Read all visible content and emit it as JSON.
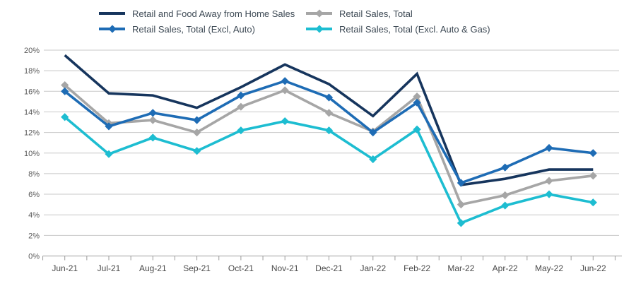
{
  "chart_style": {
    "background_color": "#ffffff",
    "grid_color": "#c8c8c8",
    "axis_color": "#9b9b9b",
    "y_label_color": "#595959",
    "x_label_color": "#4a4a4a",
    "legend_text_color": "#3e4a55"
  },
  "chart_data": {
    "type": "line",
    "title": "",
    "xlabel": "",
    "ylabel": "",
    "grid": "horizontal",
    "legend_position": "top",
    "ylim": [
      0,
      20
    ],
    "ytick_step": 2,
    "yticks": [
      "0%",
      "2%",
      "4%",
      "6%",
      "8%",
      "10%",
      "12%",
      "14%",
      "16%",
      "18%",
      "20%"
    ],
    "categories": [
      "Jun-21",
      "Jul-21",
      "Aug-21",
      "Sep-21",
      "Oct-21",
      "Nov-21",
      "Dec-21",
      "Jan-22",
      "Feb-22",
      "Mar-22",
      "Apr-22",
      "May-22",
      "Jun-22"
    ],
    "series": [
      {
        "name": "Retail and Food Away from Home Sales",
        "color": "#16355d",
        "marker": "none",
        "values": [
          19.5,
          15.8,
          15.6,
          14.4,
          16.4,
          18.6,
          16.7,
          13.6,
          17.7,
          6.9,
          7.5,
          8.4,
          8.4
        ]
      },
      {
        "name": "Retail Sales, Total (Excl, Auto)",
        "color": "#1e6cb5",
        "marker": "diamond",
        "values": [
          16.0,
          12.6,
          13.9,
          13.2,
          15.6,
          17.0,
          15.4,
          12.0,
          14.9,
          7.1,
          8.6,
          10.5,
          10.0
        ]
      },
      {
        "name": "Retail Sales, Total",
        "color": "#a6a6a6",
        "marker": "diamond",
        "values": [
          16.6,
          12.9,
          13.2,
          12.0,
          14.5,
          16.1,
          13.9,
          12.1,
          15.5,
          5.0,
          5.9,
          7.3,
          7.8
        ]
      },
      {
        "name": "Retail Sales, Total (Excl. Auto & Gas)",
        "color": "#1dbdd1",
        "marker": "diamond",
        "values": [
          13.5,
          9.9,
          11.5,
          10.2,
          12.2,
          13.1,
          12.2,
          9.4,
          12.3,
          3.2,
          4.9,
          6.0,
          5.2
        ]
      }
    ]
  }
}
